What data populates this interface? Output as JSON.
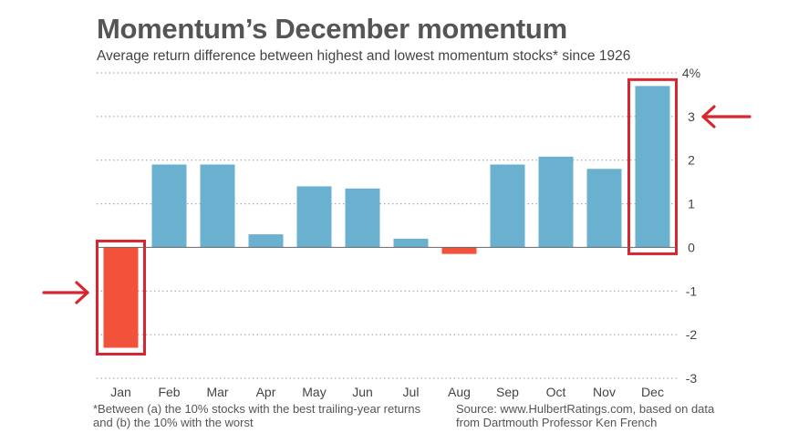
{
  "title": "Momentum’s December momentum",
  "subtitle": "Average return difference between highest and lowest momentum stocks* since 1926",
  "footnote": "*Between (a) the 10% stocks with the best trailing-year returns and (b) the 10% with the worst",
  "source": "Source: www.HulbertRatings.com, based on data from Dartmouth Professor Ken French",
  "colors": {
    "positive": "#6ab0cf",
    "negative": "#f2523a",
    "highlight": "#d7262f",
    "grid": "#9a9a9a"
  },
  "chart_data": {
    "type": "bar",
    "categories": [
      "Jan",
      "Feb",
      "Mar",
      "Apr",
      "May",
      "Jun",
      "Jul",
      "Aug",
      "Sep",
      "Oct",
      "Nov",
      "Dec"
    ],
    "values": [
      -2.3,
      1.9,
      1.9,
      0.3,
      1.4,
      1.35,
      0.2,
      -0.15,
      1.9,
      2.08,
      1.8,
      3.7
    ],
    "ylim": [
      -3,
      4
    ],
    "yticks": [
      4,
      3,
      2,
      1,
      0,
      -1,
      -2,
      -3
    ],
    "ytick_labels": [
      "4%",
      "3",
      "2",
      "1",
      "0",
      "-1",
      "-2",
      "-3"
    ],
    "grid": true,
    "highlighted": [
      "Jan",
      "Dec"
    ]
  }
}
